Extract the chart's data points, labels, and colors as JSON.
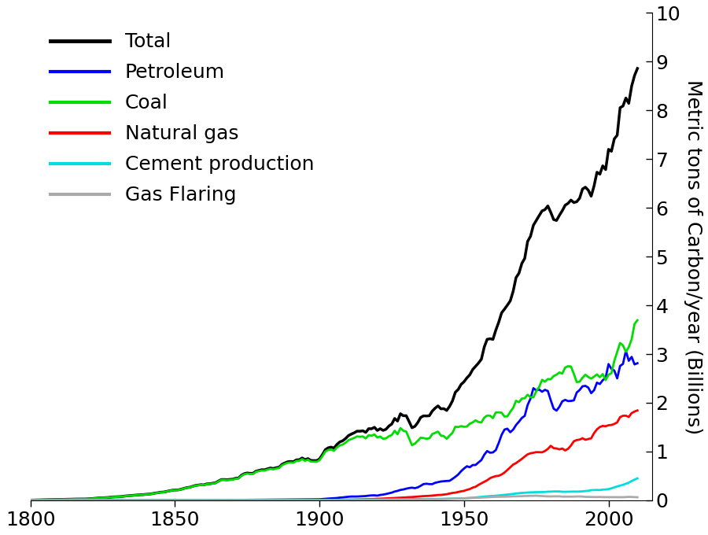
{
  "ylabel": "Metric tons of Carbon/year (Billions)",
  "xlim": [
    1800,
    2015
  ],
  "ylim": [
    0,
    10
  ],
  "yticks": [
    0,
    1,
    2,
    3,
    4,
    5,
    6,
    7,
    8,
    9,
    10
  ],
  "xticks": [
    1800,
    1850,
    1900,
    1950,
    2000
  ],
  "legend_labels": [
    "Total",
    "Petroleum",
    "Coal",
    "Natural gas",
    "Cement production",
    "Gas Flaring"
  ],
  "legend_colors": [
    "#000000",
    "#0000ff",
    "#00dd00",
    "#ff0000",
    "#00dddd",
    "#aaaaaa"
  ],
  "line_widths": [
    2.5,
    2.0,
    2.0,
    2.0,
    2.0,
    2.0
  ],
  "font_size": 18,
  "tick_font_size": 18,
  "ylabel_font_size": 18
}
